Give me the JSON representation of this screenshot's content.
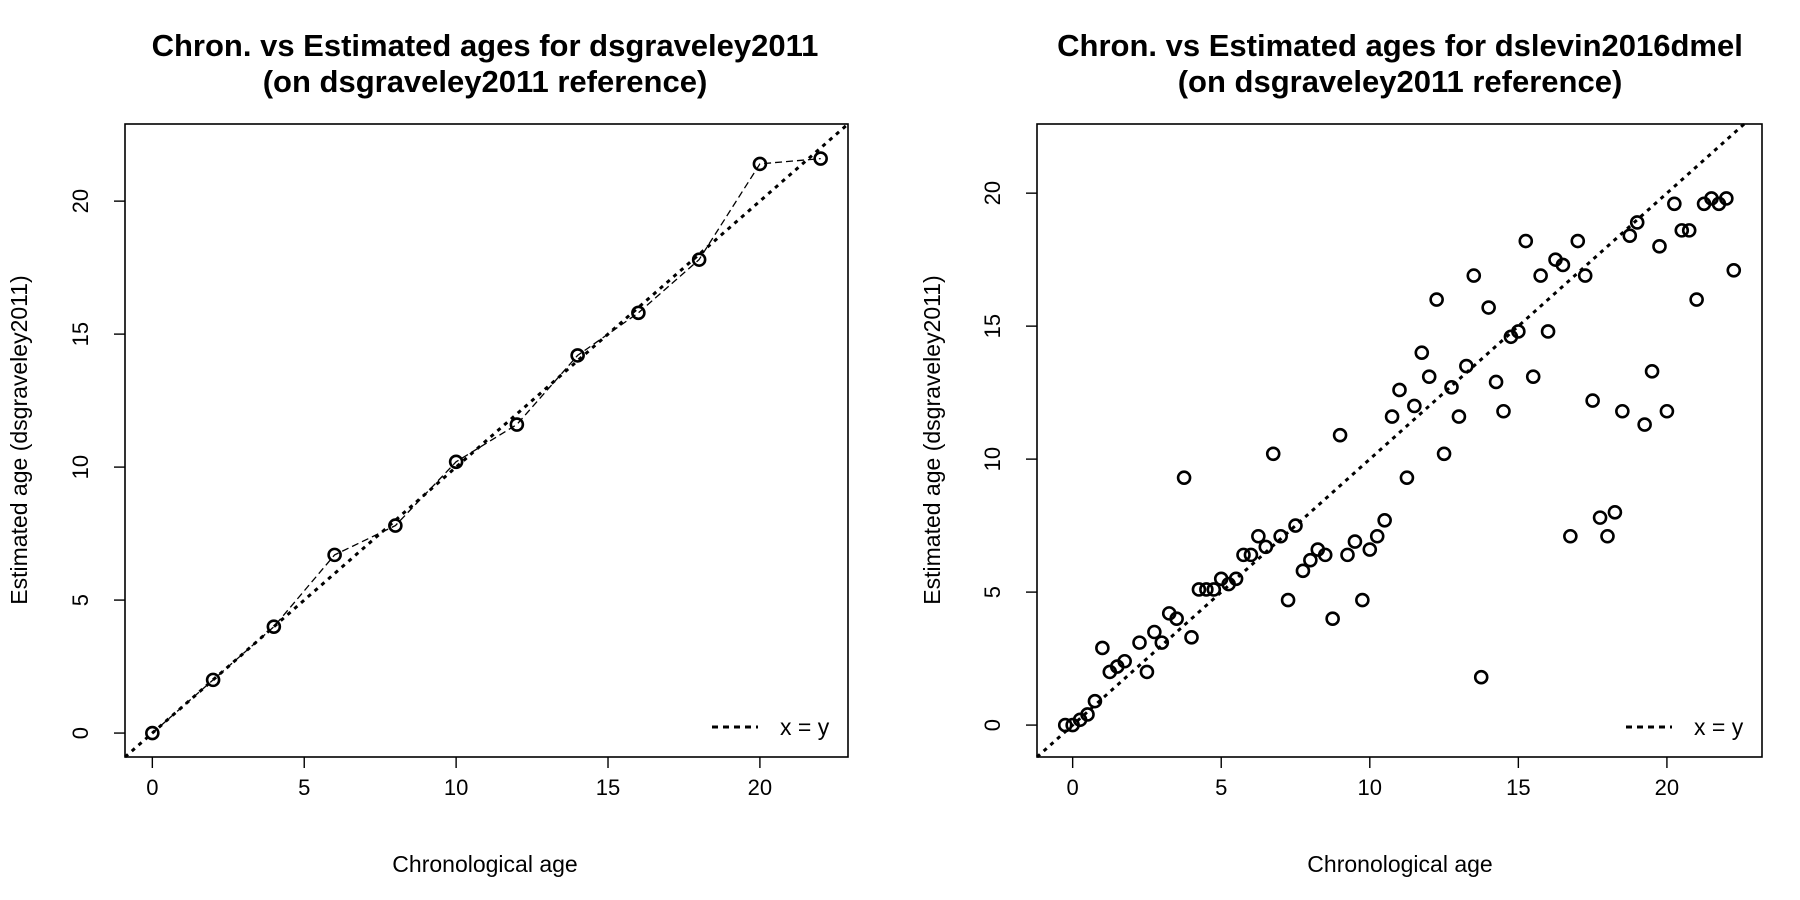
{
  "chart_data": [
    {
      "type": "scatter",
      "title": "Chron. vs Estimated ages for dsgraveley2011",
      "subtitle": "(on dsgraveley2011 reference)",
      "xlabel": "Chronological age",
      "ylabel": "Estimated age (dsgraveley2011)",
      "xlim": [
        -0.9,
        22.9
      ],
      "ylim": [
        -0.9,
        22.9
      ],
      "xticks": [
        0,
        5,
        10,
        15,
        20
      ],
      "yticks": [
        0,
        5,
        10,
        15,
        20
      ],
      "grid": false,
      "legend": {
        "position": "bottom-right",
        "entries": [
          {
            "label": "x = y",
            "style": "dotted-line"
          }
        ]
      },
      "connect_points": true,
      "reference_line": "x = y",
      "points": [
        [
          0,
          0
        ],
        [
          2,
          2
        ],
        [
          4,
          4
        ],
        [
          6,
          6.7
        ],
        [
          8,
          7.8
        ],
        [
          10,
          10.2
        ],
        [
          12,
          11.6
        ],
        [
          14,
          14.2
        ],
        [
          16,
          15.8
        ],
        [
          18,
          17.8
        ],
        [
          20,
          21.4
        ],
        [
          22,
          21.6
        ]
      ]
    },
    {
      "type": "scatter",
      "title": "Chron. vs Estimated ages for dslevin2016dmel",
      "subtitle": "(on dsgraveley2011 reference)",
      "xlabel": "Chronological age",
      "ylabel": "Estimated age (dsgraveley2011)",
      "xlim": [
        -1.2,
        23.2
      ],
      "ylim": [
        -1.2,
        22.6
      ],
      "xticks": [
        0,
        5,
        10,
        15,
        20
      ],
      "yticks": [
        0,
        5,
        10,
        15,
        20
      ],
      "grid": false,
      "legend": {
        "position": "bottom-right",
        "entries": [
          {
            "label": "x = y",
            "style": "dotted-line"
          }
        ]
      },
      "connect_points": false,
      "reference_line": "x = y",
      "points": [
        [
          -0.25,
          0
        ],
        [
          0,
          0
        ],
        [
          0.25,
          0.2
        ],
        [
          0.5,
          0.4
        ],
        [
          0.75,
          0.9
        ],
        [
          1.0,
          2.9
        ],
        [
          1.25,
          2.0
        ],
        [
          1.5,
          2.2
        ],
        [
          1.75,
          2.4
        ],
        [
          2.25,
          3.1
        ],
        [
          2.5,
          2.0
        ],
        [
          2.75,
          3.5
        ],
        [
          3.0,
          3.1
        ],
        [
          3.25,
          4.2
        ],
        [
          3.5,
          4.0
        ],
        [
          3.75,
          9.3
        ],
        [
          4.0,
          3.3
        ],
        [
          4.25,
          5.1
        ],
        [
          4.5,
          5.1
        ],
        [
          4.75,
          5.1
        ],
        [
          5.0,
          5.5
        ],
        [
          5.25,
          5.3
        ],
        [
          5.5,
          5.5
        ],
        [
          5.75,
          6.4
        ],
        [
          6.0,
          6.4
        ],
        [
          6.25,
          7.1
        ],
        [
          6.5,
          6.7
        ],
        [
          6.75,
          10.2
        ],
        [
          7.0,
          7.1
        ],
        [
          7.25,
          4.7
        ],
        [
          7.5,
          7.5
        ],
        [
          7.75,
          5.8
        ],
        [
          8.0,
          6.2
        ],
        [
          8.25,
          6.6
        ],
        [
          8.5,
          6.4
        ],
        [
          8.75,
          4.0
        ],
        [
          9.0,
          10.9
        ],
        [
          9.25,
          6.4
        ],
        [
          9.5,
          6.9
        ],
        [
          9.75,
          4.7
        ],
        [
          10.0,
          6.6
        ],
        [
          10.25,
          7.1
        ],
        [
          10.5,
          7.7
        ],
        [
          10.75,
          11.6
        ],
        [
          11.0,
          12.6
        ],
        [
          11.25,
          9.3
        ],
        [
          11.5,
          12.0
        ],
        [
          11.75,
          14.0
        ],
        [
          12.0,
          13.1
        ],
        [
          12.25,
          16.0
        ],
        [
          12.5,
          10.2
        ],
        [
          12.75,
          12.7
        ],
        [
          13.0,
          11.6
        ],
        [
          13.25,
          13.5
        ],
        [
          13.5,
          16.9
        ],
        [
          13.75,
          1.8
        ],
        [
          14.0,
          15.7
        ],
        [
          14.25,
          12.9
        ],
        [
          14.5,
          11.8
        ],
        [
          14.75,
          14.6
        ],
        [
          15.0,
          14.8
        ],
        [
          15.25,
          18.2
        ],
        [
          15.5,
          13.1
        ],
        [
          15.75,
          16.9
        ],
        [
          16.0,
          14.8
        ],
        [
          16.25,
          17.5
        ],
        [
          16.5,
          17.3
        ],
        [
          16.75,
          7.1
        ],
        [
          17.0,
          18.2
        ],
        [
          17.25,
          16.9
        ],
        [
          17.5,
          12.2
        ],
        [
          17.75,
          7.8
        ],
        [
          18.0,
          7.1
        ],
        [
          18.25,
          8.0
        ],
        [
          18.5,
          11.8
        ],
        [
          18.75,
          18.4
        ],
        [
          19.0,
          18.9
        ],
        [
          19.25,
          11.3
        ],
        [
          19.5,
          13.3
        ],
        [
          19.75,
          18.0
        ],
        [
          20.0,
          11.8
        ],
        [
          20.25,
          19.6
        ],
        [
          20.5,
          18.6
        ],
        [
          20.75,
          18.6
        ],
        [
          21.0,
          16.0
        ],
        [
          21.25,
          19.6
        ],
        [
          21.5,
          19.8
        ],
        [
          21.75,
          19.6
        ],
        [
          22.0,
          19.8
        ],
        [
          22.25,
          17.1
        ]
      ]
    }
  ]
}
